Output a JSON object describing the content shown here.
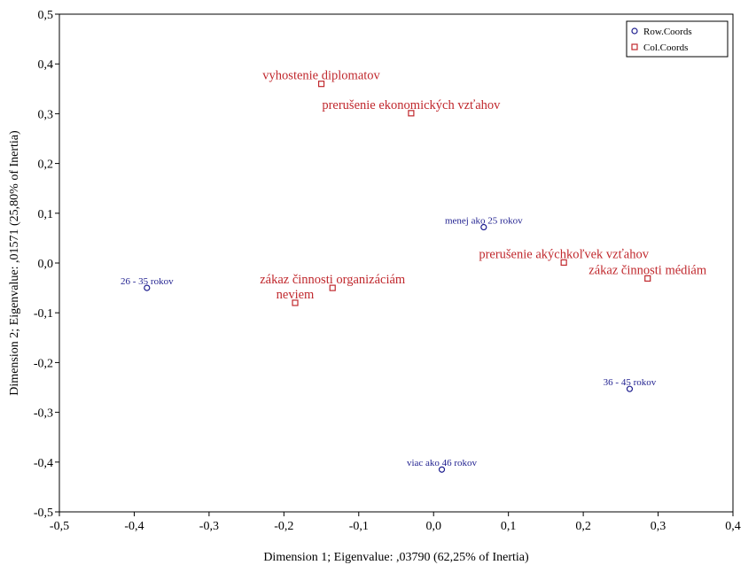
{
  "chart_data": {
    "type": "scatter",
    "xlabel": "Dimension 1; Eigenvalue: ,03790 (62,25% of Inertia)",
    "ylabel": "Dimension 2; Eigenvalue: ,01571 (25,80% of Inertia)",
    "xlim": [
      -0.5,
      0.4
    ],
    "ylim": [
      -0.5,
      0.5
    ],
    "x_ticks": [
      -0.5,
      -0.4,
      -0.3,
      -0.2,
      -0.1,
      0.0,
      0.1,
      0.2,
      0.3,
      0.4
    ],
    "y_ticks": [
      -0.5,
      -0.4,
      -0.3,
      -0.2,
      -0.1,
      0.0,
      0.1,
      0.2,
      0.3,
      0.4,
      0.5
    ],
    "x_tick_labels": [
      "-0,5",
      "-0,4",
      "-0,3",
      "-0,2",
      "-0,1",
      "0,0",
      "0,1",
      "0,2",
      "0,3",
      "0,4"
    ],
    "y_tick_labels": [
      "-0,5",
      "-0,4",
      "-0,3",
      "-0,2",
      "-0,1",
      "0,0",
      "0,1",
      "0,2",
      "0,3",
      "0,4",
      "0,5"
    ],
    "grid": false,
    "legend_position": "top-right",
    "series": [
      {
        "name": "Row.Coords",
        "marker": "circle",
        "color": "#1f1f8f",
        "points": [
          {
            "label": "menej ako 25 rokov",
            "x": 0.067,
            "y": 0.072
          },
          {
            "label": "26 - 35 rokov",
            "x": -0.383,
            "y": -0.05
          },
          {
            "label": "36 - 45 rokov",
            "x": 0.262,
            "y": -0.253
          },
          {
            "label": "viac ako 46 rokov",
            "x": 0.011,
            "y": -0.415
          }
        ]
      },
      {
        "name": "Col.Coords",
        "marker": "square",
        "color": "#c0282d",
        "points": [
          {
            "label": "vyhostenie diplomatov",
            "x": -0.15,
            "y": 0.36
          },
          {
            "label": "prerušenie ekonomických vzťahov",
            "x": -0.03,
            "y": 0.301
          },
          {
            "label": "prerušenie akýchkoľvek vzťahov",
            "x": 0.174,
            "y": 0.001
          },
          {
            "label": "zákaz činnosti médiám",
            "x": 0.286,
            "y": -0.031
          },
          {
            "label": "zákaz činnosti organizáciám",
            "x": -0.135,
            "y": -0.05
          },
          {
            "label": "neviem",
            "x": -0.185,
            "y": -0.08
          }
        ]
      }
    ]
  }
}
